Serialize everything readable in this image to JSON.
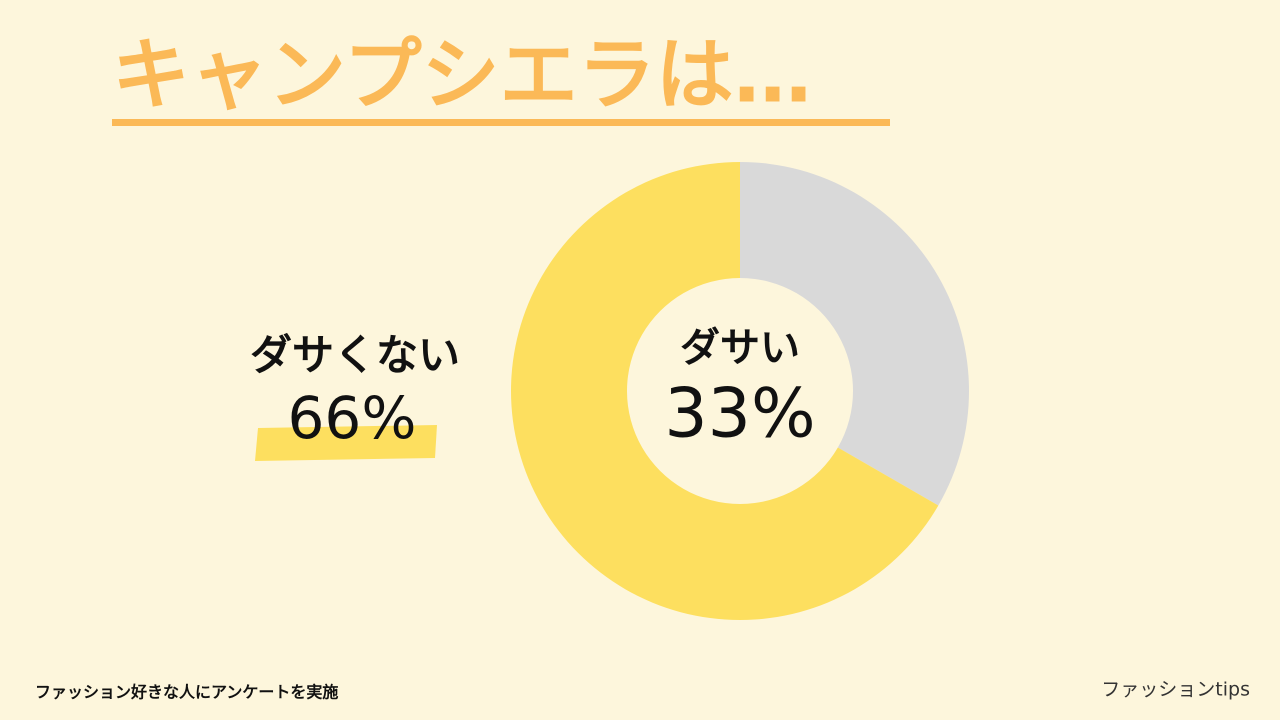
{
  "chart_data": {
    "type": "donut",
    "title": "キャンプシエラは…",
    "categories": [
      "ダサい",
      "ダサくない"
    ],
    "values": [
      33,
      66
    ],
    "value_labels": [
      "33%",
      "66%"
    ],
    "colors": [
      "#d9d9d9",
      "#fddf5f"
    ]
  },
  "footnote": "ファッション好きな人にアンケートを実施",
  "brand": "ファッションtips"
}
